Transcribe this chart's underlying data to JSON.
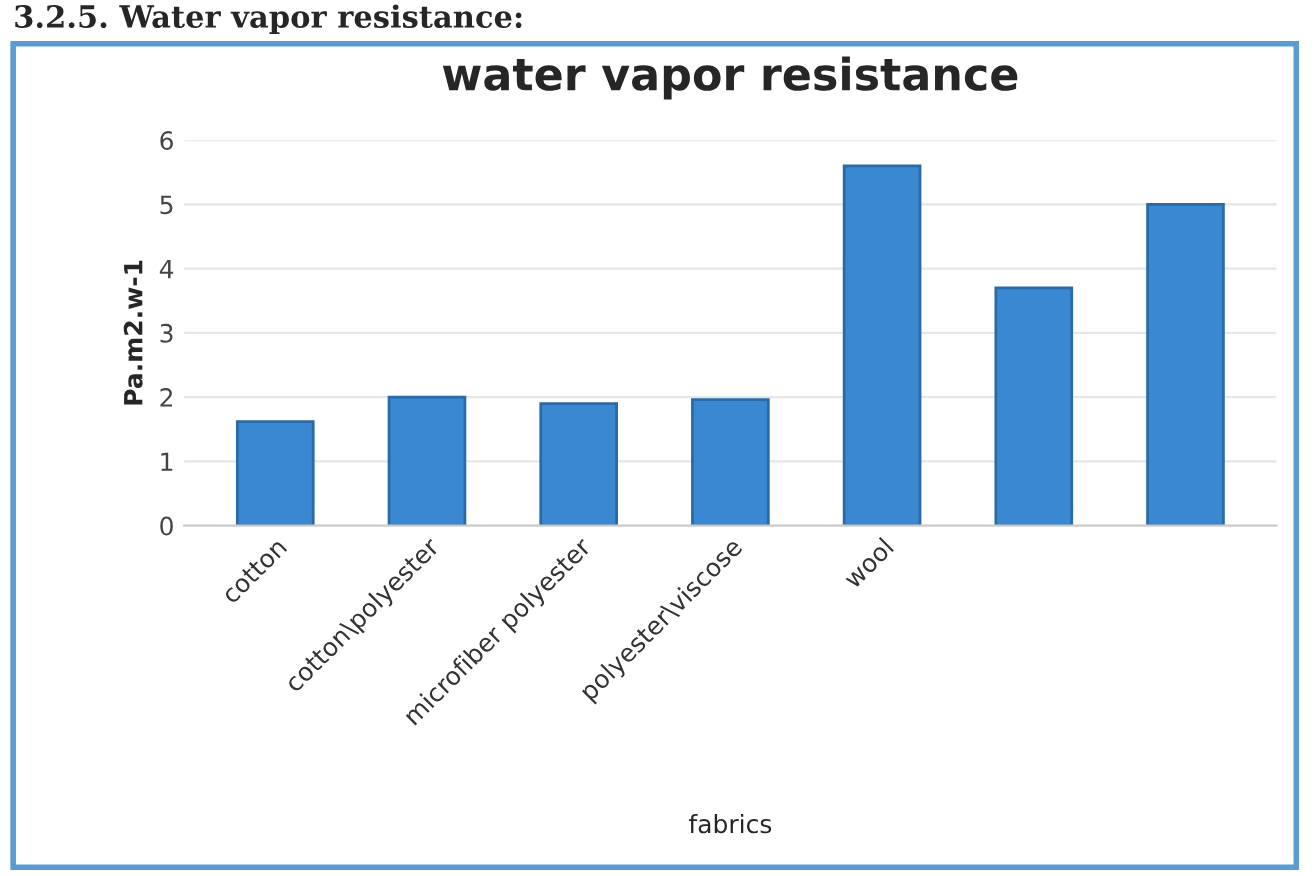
{
  "chart_data": {
    "type": "bar",
    "title": "water vapor resistance",
    "xlabel": "fabrics",
    "ylabel": "Pa.m2.w-1",
    "annotations": [
      "3.2.5. Water vapor resistance:"
    ],
    "categories": [
      "cotton",
      "cotton\\polyester",
      "microfiber polyester",
      "polyester\\viscose",
      "wool",
      null,
      null
    ],
    "values": [
      1.62,
      2.0,
      1.9,
      1.96,
      5.6,
      3.7,
      5.0
    ],
    "color": "#3a87d2",
    "ylim": [
      0,
      6
    ],
    "yticks": [
      0,
      1,
      2,
      3,
      4,
      5,
      6
    ],
    "grid": "y"
  }
}
